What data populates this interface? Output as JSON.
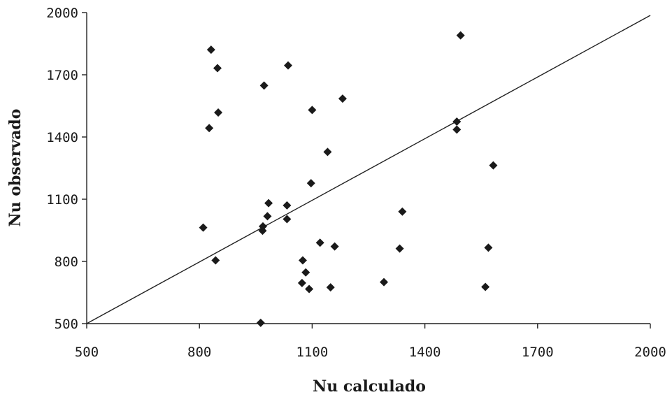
{
  "chart_data": {
    "type": "scatter",
    "title": "",
    "xlabel": "Nu calculado",
    "ylabel": "Nu observado",
    "xlim": [
      500,
      2000
    ],
    "ylim": [
      500,
      2000
    ],
    "xticks": [
      500,
      800,
      1100,
      1400,
      1700,
      2000
    ],
    "yticks": [
      500,
      800,
      1100,
      1400,
      1700,
      2000
    ],
    "grid": false,
    "reference_line": {
      "from": [
        500,
        500
      ],
      "to": [
        2000,
        2000
      ]
    },
    "marker": "diamond",
    "colors": {
      "marker": "#1a1a1a",
      "axis": "#222222"
    },
    "points": [
      {
        "x": 810,
        "y": 963
      },
      {
        "x": 826,
        "y": 1443
      },
      {
        "x": 831,
        "y": 1821
      },
      {
        "x": 843,
        "y": 805
      },
      {
        "x": 848,
        "y": 1732
      },
      {
        "x": 850,
        "y": 1518
      },
      {
        "x": 963,
        "y": 504
      },
      {
        "x": 968,
        "y": 948
      },
      {
        "x": 969,
        "y": 969
      },
      {
        "x": 972,
        "y": 1648
      },
      {
        "x": 981,
        "y": 1018
      },
      {
        "x": 984,
        "y": 1081
      },
      {
        "x": 1033,
        "y": 1070
      },
      {
        "x": 1033,
        "y": 1004
      },
      {
        "x": 1036,
        "y": 1745
      },
      {
        "x": 1073,
        "y": 696
      },
      {
        "x": 1075,
        "y": 805
      },
      {
        "x": 1083,
        "y": 747
      },
      {
        "x": 1092,
        "y": 667
      },
      {
        "x": 1097,
        "y": 1177
      },
      {
        "x": 1100,
        "y": 1530
      },
      {
        "x": 1121,
        "y": 890
      },
      {
        "x": 1141,
        "y": 1328
      },
      {
        "x": 1149,
        "y": 675
      },
      {
        "x": 1160,
        "y": 872
      },
      {
        "x": 1181,
        "y": 1585
      },
      {
        "x": 1291,
        "y": 700
      },
      {
        "x": 1333,
        "y": 862
      },
      {
        "x": 1340,
        "y": 1040
      },
      {
        "x": 1485,
        "y": 1474
      },
      {
        "x": 1485,
        "y": 1436
      },
      {
        "x": 1495,
        "y": 1890
      },
      {
        "x": 1561,
        "y": 677
      },
      {
        "x": 1569,
        "y": 866
      },
      {
        "x": 1582,
        "y": 1263
      }
    ]
  }
}
